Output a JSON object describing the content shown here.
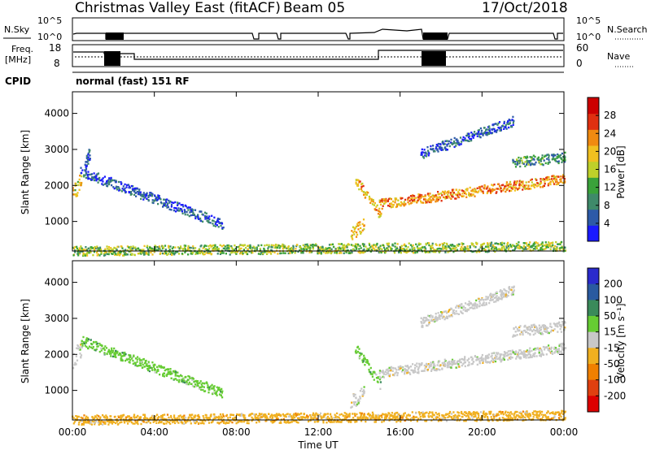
{
  "header": {
    "title": "Christmas Valley East (fitACF)",
    "beam": "Beam 05",
    "date": "17/Oct/2018"
  },
  "status_panels": {
    "nsky_label": "N.Sky",
    "nsky_ticks": [
      "10^5",
      "10^0"
    ],
    "nsearch_label": "N.Search",
    "nsearch_ticks": [
      "10^5",
      "10^0"
    ],
    "freq_label_1": "Freq.",
    "freq_label_2": "[MHz]",
    "freq_ticks": [
      "18",
      "8"
    ],
    "nave_label": "Nave",
    "nave_ticks": [
      "60",
      "0"
    ],
    "cpid_label": "CPID",
    "cpid_value": "normal (fast) 151 RF"
  },
  "chart_data": [
    {
      "type": "heatmap",
      "parameter": "power",
      "ylabel": "Slant Range [km]",
      "ylim": [
        180,
        4600
      ],
      "yticks": [
        "1000",
        "2000",
        "3000",
        "4000"
      ],
      "xlim": [
        0,
        24
      ],
      "colorbar_label": "Power [dB]",
      "colorbar_ticks": [
        "4",
        "8",
        "12",
        "16",
        "20",
        "24",
        "28"
      ],
      "colorbar_range": [
        0,
        32
      ],
      "colors": [
        "#1a1aff",
        "#2d5aa8",
        "#3f8a6a",
        "#3aa23a",
        "#bfd02a",
        "#f0c020",
        "#f08a10",
        "#e03010",
        "#cc0000"
      ],
      "features": [
        {
          "x": [
            0.0,
            0.4
          ],
          "y": [
            1800,
            2200
          ],
          "level": 0.6
        },
        {
          "x": [
            0.4,
            7.3
          ],
          "y": [
            2400,
            950
          ],
          "level": 0.15
        },
        {
          "x": [
            0.6,
            0.8
          ],
          "y": [
            2600,
            2900
          ],
          "level": 0.15
        },
        {
          "x": [
            0.0,
            24.0
          ],
          "y": [
            200,
            330
          ],
          "level": 0.45
        },
        {
          "x": [
            13.6,
            14.2
          ],
          "y": [
            700,
            950
          ],
          "level": 0.6
        },
        {
          "x": [
            13.8,
            15.0
          ],
          "y": [
            2200,
            1200
          ],
          "level": 0.65
        },
        {
          "x": [
            15.0,
            24.0
          ],
          "y": [
            1500,
            2200
          ],
          "level": 0.7
        },
        {
          "x": [
            17.0,
            21.5
          ],
          "y": [
            2900,
            3800
          ],
          "level": 0.15
        },
        {
          "x": [
            21.5,
            24.0
          ],
          "y": [
            2650,
            2800
          ],
          "level": 0.3
        }
      ]
    },
    {
      "type": "heatmap",
      "parameter": "velocity",
      "ylabel": "Slant Range [km]",
      "ylim": [
        180,
        4600
      ],
      "yticks": [
        "1000",
        "2000",
        "3000",
        "4000"
      ],
      "xlim": [
        0,
        24
      ],
      "xticks": [
        "00:00",
        "04:00",
        "08:00",
        "12:00",
        "16:00",
        "20:00",
        "00:00"
      ],
      "xlabel": "Time UT",
      "colorbar_label": "Velocity [m s⁻¹]",
      "colorbar_ticks": [
        "200",
        "100",
        "50",
        "15",
        "-15",
        "-50",
        "-100",
        "-200"
      ],
      "colors": [
        "#2a2acc",
        "#2a5aa0",
        "#3a8a5a",
        "#66cc33",
        "#c8c8c8",
        "#f0b020",
        "#f08000",
        "#e04010",
        "#dd0000"
      ],
      "features": [
        {
          "x": [
            0.0,
            0.4
          ],
          "y": [
            1800,
            2200
          ],
          "level": "-15..15"
        },
        {
          "x": [
            0.4,
            7.3
          ],
          "y": [
            2400,
            950
          ],
          "level": "15..50"
        },
        {
          "x": [
            0.0,
            24.0
          ],
          "y": [
            200,
            330
          ],
          "level": "-50..-15"
        },
        {
          "x": [
            13.6,
            14.2
          ],
          "y": [
            700,
            950
          ],
          "level": "-15..15"
        },
        {
          "x": [
            13.8,
            15.0
          ],
          "y": [
            2200,
            1200
          ],
          "level": "15..50"
        },
        {
          "x": [
            15.0,
            24.0
          ],
          "y": [
            1500,
            2200
          ],
          "level": "-15..15"
        },
        {
          "x": [
            17.0,
            21.5
          ],
          "y": [
            2900,
            3800
          ],
          "level": "-15..15"
        },
        {
          "x": [
            21.5,
            24.0
          ],
          "y": [
            2650,
            2800
          ],
          "level": "-15..15"
        }
      ]
    }
  ]
}
